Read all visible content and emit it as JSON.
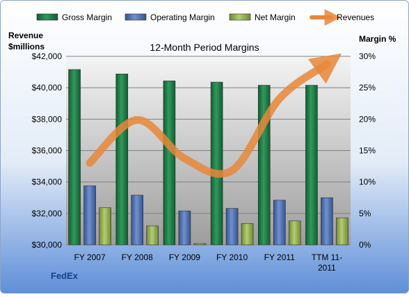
{
  "chart_data": {
    "type": "bar",
    "title": "12-Month Period Margins",
    "company": "FedEx",
    "left_axis": {
      "label_line1": "Revenue",
      "label_line2": "$millions",
      "min": 30000,
      "max": 42000,
      "step": 2000,
      "ticks": [
        "$30,000",
        "$32,000",
        "$34,000",
        "$36,000",
        "$38,000",
        "$40,000",
        "$42,000"
      ]
    },
    "right_axis": {
      "label": "Margin %",
      "min": 0,
      "max": 30,
      "step": 5,
      "ticks": [
        "0%",
        "5%",
        "10%",
        "15%",
        "20%",
        "25%",
        "30%"
      ]
    },
    "categories": [
      "FY 2007",
      "FY 2008",
      "FY 2009",
      "FY 2010",
      "FY 2011",
      "TTM 11-2011"
    ],
    "category_lines": [
      [
        "FY 2007"
      ],
      [
        "FY 2008"
      ],
      [
        "FY 2009"
      ],
      [
        "FY 2010"
      ],
      [
        "FY 2011"
      ],
      [
        "TTM 11-",
        "2011"
      ]
    ],
    "series": [
      {
        "name": "Gross Margin",
        "axis": "right",
        "kind": "bar",
        "color": "#1e7a45",
        "values": [
          27.9,
          27.2,
          26.1,
          25.9,
          25.4,
          25.4
        ]
      },
      {
        "name": "Operating Margin",
        "axis": "right",
        "kind": "bar",
        "color": "#4a6fb0",
        "values": [
          9.4,
          7.9,
          5.4,
          5.8,
          7.1,
          7.5
        ]
      },
      {
        "name": "Net Margin",
        "axis": "right",
        "kind": "bar",
        "color": "#93b050",
        "values": [
          5.9,
          3.0,
          0.2,
          3.4,
          3.8,
          4.3
        ]
      },
      {
        "name": "Revenues",
        "axis": "left",
        "kind": "line",
        "color": "#e8873a",
        "values": [
          35214,
          37953,
          35497,
          34734,
          39304,
          41500
        ]
      }
    ],
    "legend_position": "top",
    "grid": true
  }
}
